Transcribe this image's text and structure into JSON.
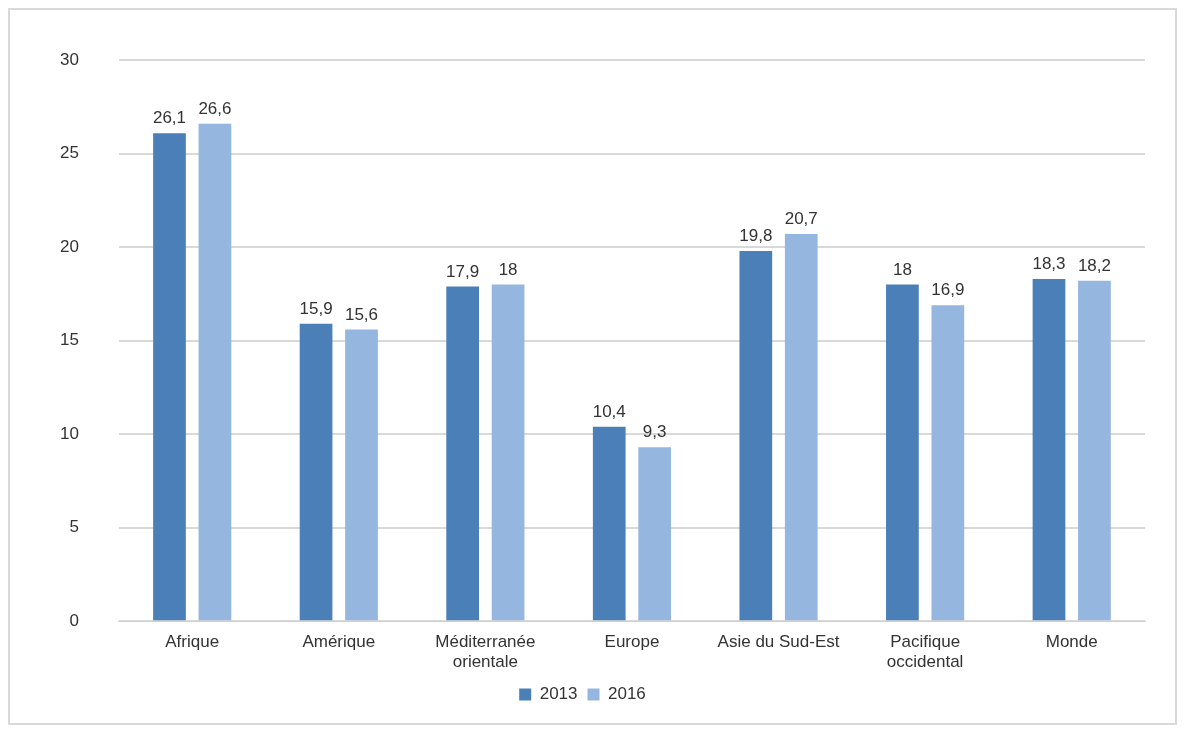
{
  "chart_data": {
    "type": "bar",
    "categories": [
      "Afrique",
      "Amérique",
      "Méditerranée orientale",
      "Europe",
      "Asie du Sud-Est",
      "Pacifique occidental",
      "Monde"
    ],
    "series": [
      {
        "name": "2013",
        "color": "#4a7fb8",
        "values": [
          26.1,
          15.9,
          17.9,
          10.4,
          19.8,
          18,
          18.3
        ],
        "value_labels": [
          "26,1",
          "15,9",
          "17,9",
          "10,4",
          "19,8",
          "18",
          "18,3"
        ]
      },
      {
        "name": "2016",
        "color": "#95b6df",
        "values": [
          26.6,
          15.6,
          18,
          9.3,
          20.7,
          16.9,
          18.2
        ],
        "value_labels": [
          "26,6",
          "15,6",
          "18",
          "9,3",
          "20,7",
          "16,9",
          "18,2"
        ]
      }
    ],
    "ylim": [
      0,
      30
    ],
    "yticks": [
      0,
      5,
      10,
      15,
      20,
      25,
      30
    ],
    "grid": "y",
    "legend": "bottom"
  }
}
